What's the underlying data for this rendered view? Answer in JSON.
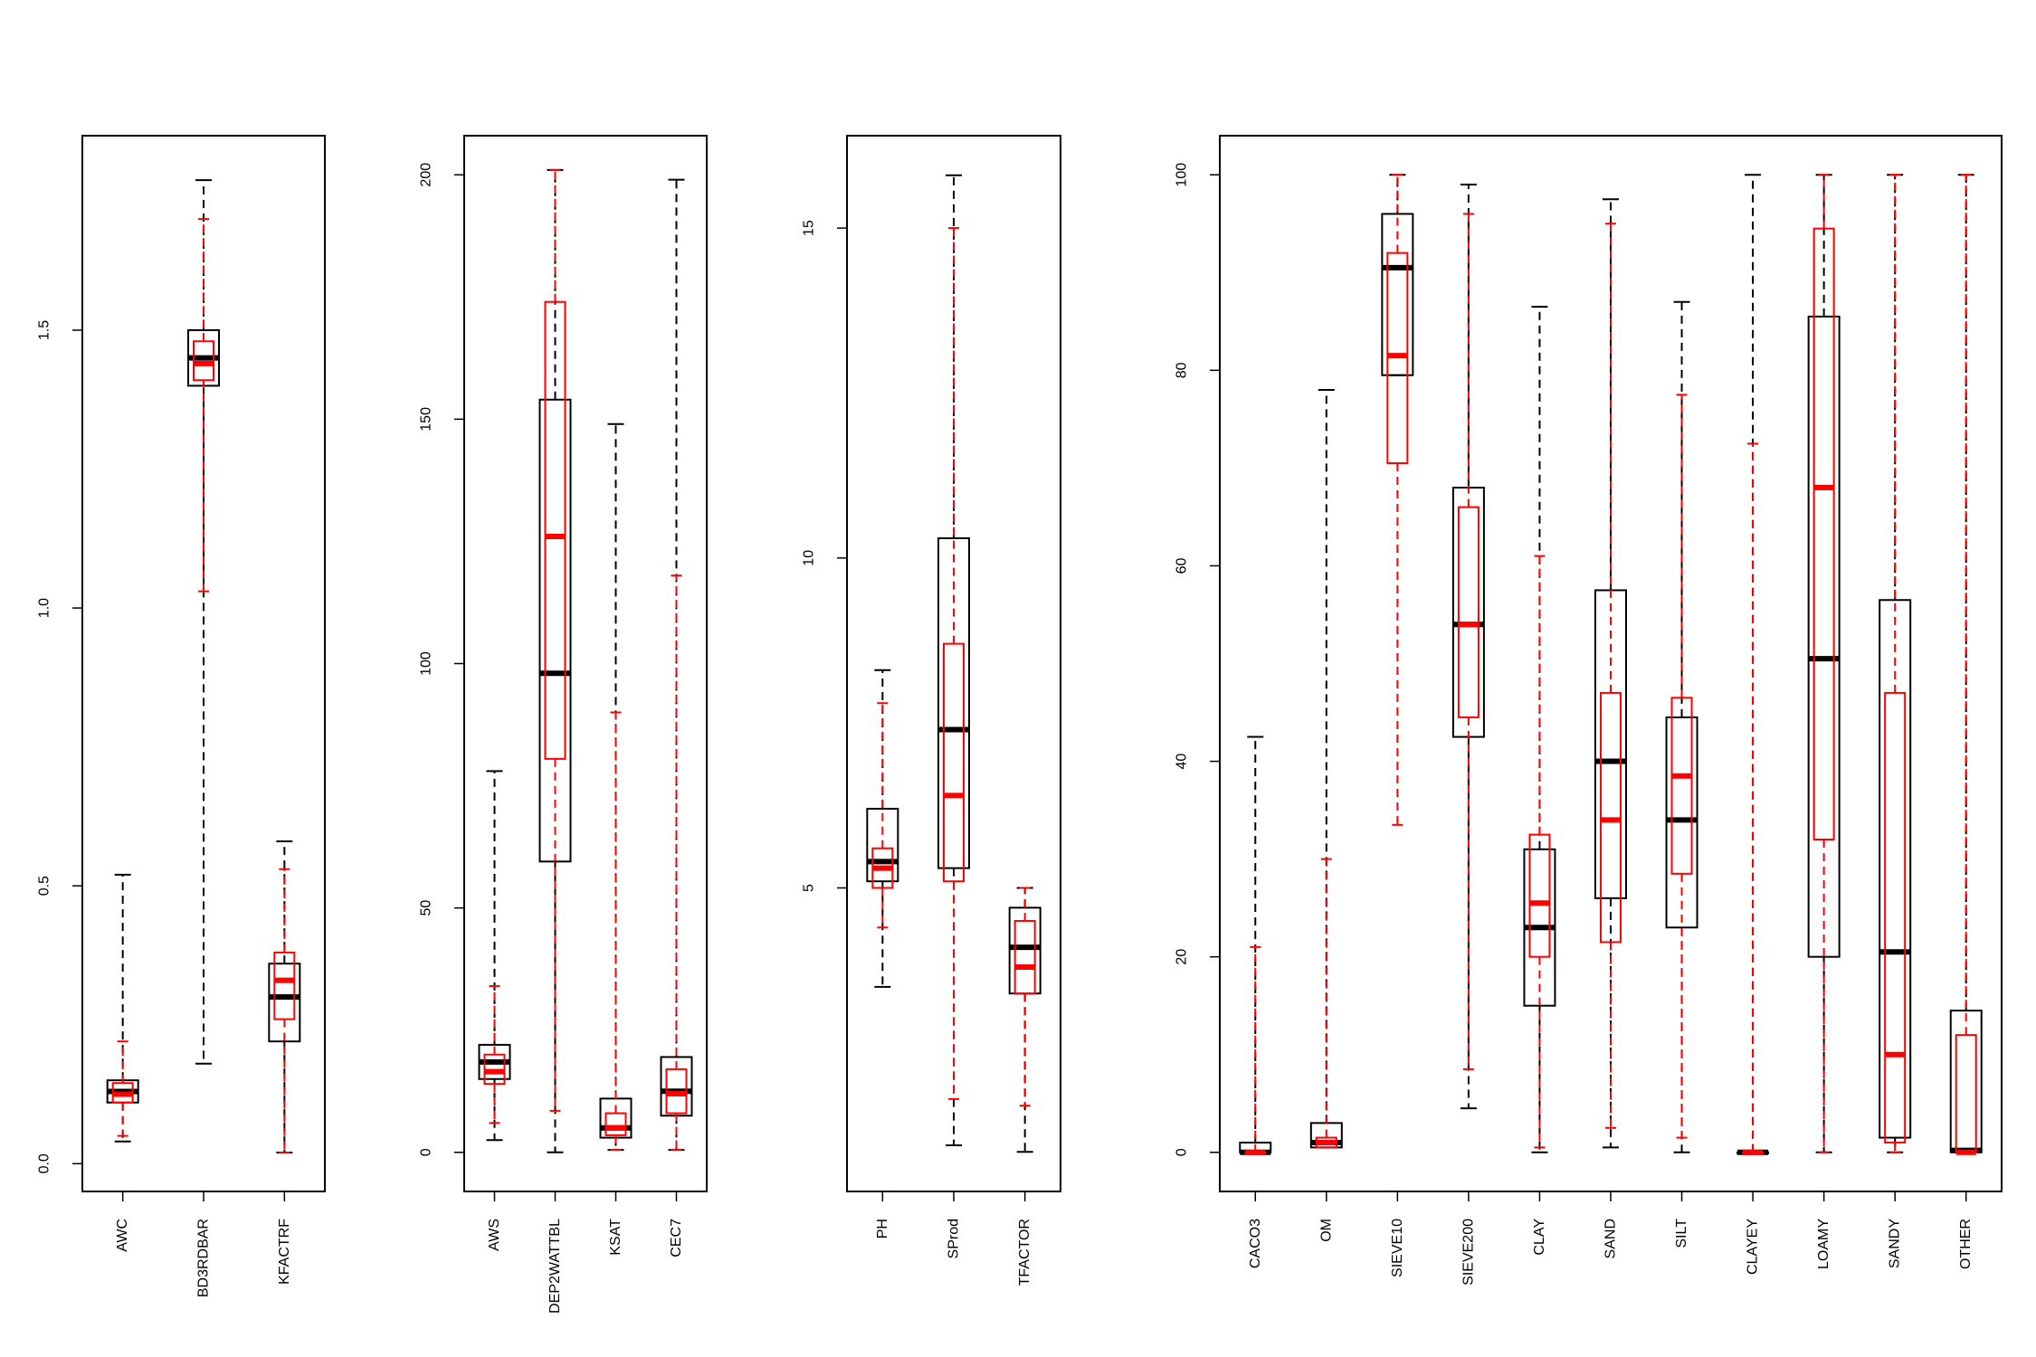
{
  "colors": {
    "overall": "#000000",
    "subset": "#ff0000",
    "background": "#ffffff"
  },
  "chart_data": [
    {
      "type": "boxplot",
      "ylim": [
        -0.05,
        1.85
      ],
      "yticks": [
        0,
        0.5,
        1,
        1.5
      ],
      "ytick_labels": [
        "0.0",
        "0.5",
        "1.0",
        "1.5"
      ],
      "categories": [
        "AWC",
        "BD3RDBAR",
        "KFACTRF"
      ],
      "series": [
        {
          "color": "#000000",
          "boxes": [
            {
              "min": 0.04,
              "q1": 0.11,
              "median": 0.13,
              "q3": 0.15,
              "max": 0.52
            },
            {
              "min": 0.18,
              "q1": 1.4,
              "median": 1.45,
              "q3": 1.5,
              "max": 1.77
            },
            {
              "min": 0.02,
              "q1": 0.22,
              "median": 0.3,
              "q3": 0.36,
              "max": 0.58
            }
          ]
        },
        {
          "color": "#ff0000",
          "boxes": [
            {
              "min": 0.05,
              "q1": 0.11,
              "median": 0.125,
              "q3": 0.145,
              "max": 0.22
            },
            {
              "min": 1.03,
              "q1": 1.41,
              "median": 1.44,
              "q3": 1.48,
              "max": 1.7
            },
            {
              "min": 0.02,
              "q1": 0.26,
              "median": 0.33,
              "q3": 0.38,
              "max": 0.53
            }
          ]
        }
      ]
    },
    {
      "type": "boxplot",
      "ylim": [
        -8,
        208
      ],
      "yticks": [
        0,
        50,
        100,
        150,
        200
      ],
      "ytick_labels": [
        "0",
        "50",
        "100",
        "150",
        "200"
      ],
      "categories": [
        "AWS",
        "DEP2WATTBL",
        "KSAT",
        "CEC7"
      ],
      "series": [
        {
          "color": "#000000",
          "boxes": [
            {
              "min": 2.5,
              "q1": 15,
              "median": 18.5,
              "q3": 22,
              "max": 78
            },
            {
              "min": 0,
              "q1": 59.5,
              "median": 98,
              "q3": 154,
              "max": 201
            },
            {
              "min": 0.5,
              "q1": 3,
              "median": 5,
              "q3": 11,
              "max": 149
            },
            {
              "min": 0.5,
              "q1": 7.5,
              "median": 12.5,
              "q3": 19.5,
              "max": 199
            }
          ]
        },
        {
          "color": "#ff0000",
          "boxes": [
            {
              "min": 6,
              "q1": 14,
              "median": 16.5,
              "q3": 20,
              "max": 34
            },
            {
              "min": 8.5,
              "q1": 80.5,
              "median": 126,
              "q3": 174,
              "max": 201
            },
            {
              "min": 0.5,
              "q1": 3.5,
              "median": 5,
              "q3": 8,
              "max": 90
            },
            {
              "min": 0.5,
              "q1": 8,
              "median": 12,
              "q3": 17,
              "max": 118
            }
          ]
        }
      ]
    },
    {
      "type": "boxplot",
      "ylim": [
        0.4,
        16.4
      ],
      "yticks": [
        5,
        10,
        15
      ],
      "ytick_labels": [
        "5",
        "10",
        "15"
      ],
      "categories": [
        "PH",
        "SProd",
        "TFACTOR"
      ],
      "series": [
        {
          "color": "#000000",
          "boxes": [
            {
              "min": 3.5,
              "q1": 5.1,
              "median": 5.4,
              "q3": 6.2,
              "max": 8.3
            },
            {
              "min": 1.1,
              "q1": 5.3,
              "median": 7.4,
              "q3": 10.3,
              "max": 15.8
            },
            {
              "min": 1,
              "q1": 3.4,
              "median": 4.1,
              "q3": 4.7,
              "max": 5
            }
          ]
        },
        {
          "color": "#ff0000",
          "boxes": [
            {
              "min": 4.4,
              "q1": 5.0,
              "median": 5.3,
              "q3": 5.6,
              "max": 7.8
            },
            {
              "min": 1.8,
              "q1": 5.1,
              "median": 6.4,
              "q3": 8.7,
              "max": 15
            },
            {
              "min": 1.7,
              "q1": 3.4,
              "median": 3.8,
              "q3": 4.5,
              "max": 5
            }
          ]
        }
      ]
    },
    {
      "type": "boxplot",
      "ylim": [
        -4,
        104
      ],
      "yticks": [
        0,
        20,
        40,
        60,
        80,
        100
      ],
      "ytick_labels": [
        "0",
        "20",
        "40",
        "60",
        "80",
        "100"
      ],
      "categories": [
        "CACO3",
        "OM",
        "SIEVE10",
        "SIEVE200",
        "CLAY",
        "SAND",
        "SILT",
        "CLAYEY",
        "LOAMY",
        "SANDY",
        "OTHER"
      ],
      "series": [
        {
          "color": "#000000",
          "boxes": [
            {
              "min": 0,
              "q1": 0,
              "median": 0,
              "q3": 1,
              "max": 42.5
            },
            {
              "min": 0.5,
              "q1": 0.5,
              "median": 1,
              "q3": 3,
              "max": 78
            },
            {
              "min": 79.5,
              "q1": 79.5,
              "median": 90.5,
              "q3": 96,
              "max": 100
            },
            {
              "min": 4.5,
              "q1": 42.5,
              "median": 54,
              "q3": 68,
              "max": 99
            },
            {
              "min": 0,
              "q1": 15,
              "median": 23,
              "q3": 31,
              "max": 86.5
            },
            {
              "min": 0.5,
              "q1": 26,
              "median": 40,
              "q3": 57.5,
              "max": 97.5
            },
            {
              "min": 0,
              "q1": 23,
              "median": 34,
              "q3": 44.5,
              "max": 87
            },
            {
              "min": 0,
              "q1": 0,
              "median": 0,
              "q3": 0,
              "max": 100
            },
            {
              "min": 0,
              "q1": 20,
              "median": 50.5,
              "q3": 85.5,
              "max": 100
            },
            {
              "min": 0,
              "q1": 1.5,
              "median": 20.5,
              "q3": 56.5,
              "max": 100
            },
            {
              "min": 0,
              "q1": 0,
              "median": 0.2,
              "q3": 14.5,
              "max": 100
            }
          ]
        },
        {
          "color": "#ff0000",
          "boxes": [
            {
              "min": 0,
              "q1": 0,
              "median": 0,
              "q3": 0,
              "max": 21
            },
            {
              "min": 0.5,
              "q1": 0.5,
              "median": 1,
              "q3": 1.5,
              "max": 30
            },
            {
              "min": 33.5,
              "q1": 70.5,
              "median": 81.5,
              "q3": 92,
              "max": 100
            },
            {
              "min": 8.5,
              "q1": 44.5,
              "median": 54,
              "q3": 66,
              "max": 96
            },
            {
              "min": 0.5,
              "q1": 20,
              "median": 25.5,
              "q3": 32.5,
              "max": 61
            },
            {
              "min": 2.5,
              "q1": 21.5,
              "median": 34,
              "q3": 47,
              "max": 95
            },
            {
              "min": 1.5,
              "q1": 28.5,
              "median": 38.5,
              "q3": 46.5,
              "max": 77.5
            },
            {
              "min": 0,
              "q1": 0,
              "median": 0,
              "q3": 0,
              "max": 72.5
            },
            {
              "min": 0,
              "q1": 32,
              "median": 68,
              "q3": 94.5,
              "max": 100
            },
            {
              "min": 0,
              "q1": 1,
              "median": 10,
              "q3": 47,
              "max": 100
            },
            {
              "min": 0,
              "q1": 0,
              "median": 0,
              "q3": 12,
              "max": 100
            }
          ]
        }
      ]
    }
  ]
}
